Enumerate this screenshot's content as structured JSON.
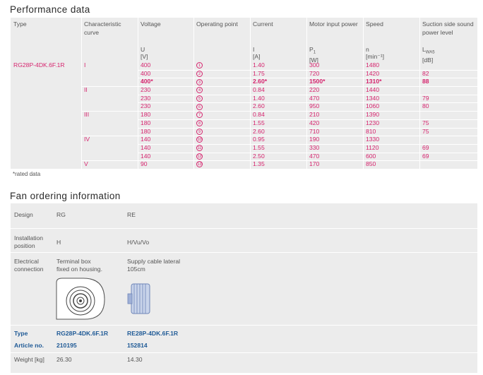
{
  "perf_title": "Performance data",
  "perf_headers": {
    "type": "Type",
    "curve": "Characteristic curve",
    "voltage": "Voltage",
    "operating_point": "Operating point",
    "current": "Current",
    "motor_power": "Motor input power",
    "speed": "Speed",
    "sound": "Suction side sound power level"
  },
  "perf_units": {
    "voltage_sym": "U",
    "voltage_unit": "[V]",
    "current_sym": "I",
    "current_unit": "[A]",
    "power_sym": "P",
    "power_sub": "1",
    "power_unit": "[W]",
    "speed_sym": "n",
    "speed_unit": "[min⁻¹]",
    "sound_sym": "L",
    "sound_sub": "WA5",
    "sound_unit": "[dB]"
  },
  "perf_type": "RG28P-4DK.6F.1R",
  "perf_rows": [
    {
      "curve": "I",
      "voltage": "400",
      "op": "1",
      "current": "1.40",
      "power": "300",
      "speed": "1480",
      "sound": "",
      "bold": false
    },
    {
      "curve": "",
      "voltage": "400",
      "op": "2",
      "current": "1.75",
      "power": "720",
      "speed": "1420",
      "sound": "82",
      "bold": false
    },
    {
      "curve": "",
      "voltage": "400*",
      "op": "3",
      "current": "2.60*",
      "power": "1500*",
      "speed": "1310*",
      "sound": "88",
      "bold": true
    },
    {
      "curve": "II",
      "voltage": "230",
      "op": "4",
      "current": "0.84",
      "power": "220",
      "speed": "1440",
      "sound": "",
      "bold": false
    },
    {
      "curve": "",
      "voltage": "230",
      "op": "5",
      "current": "1.40",
      "power": "470",
      "speed": "1340",
      "sound": "79",
      "bold": false
    },
    {
      "curve": "",
      "voltage": "230",
      "op": "6",
      "current": "2.60",
      "power": "950",
      "speed": "1060",
      "sound": "80",
      "bold": false
    },
    {
      "curve": "III",
      "voltage": "180",
      "op": "7",
      "current": "0.84",
      "power": "210",
      "speed": "1390",
      "sound": "",
      "bold": false
    },
    {
      "curve": "",
      "voltage": "180",
      "op": "8",
      "current": "1.55",
      "power": "420",
      "speed": "1230",
      "sound": "75",
      "bold": false
    },
    {
      "curve": "",
      "voltage": "180",
      "op": "9",
      "current": "2.60",
      "power": "710",
      "speed": "810",
      "sound": "75",
      "bold": false
    },
    {
      "curve": "IV",
      "voltage": "140",
      "op": "10",
      "current": "0.95",
      "power": "190",
      "speed": "1330",
      "sound": "",
      "bold": false
    },
    {
      "curve": "",
      "voltage": "140",
      "op": "11",
      "current": "1.55",
      "power": "330",
      "speed": "1120",
      "sound": "69",
      "bold": false
    },
    {
      "curve": "",
      "voltage": "140",
      "op": "12",
      "current": "2.50",
      "power": "470",
      "speed": "600",
      "sound": "69",
      "bold": false
    },
    {
      "curve": "V",
      "voltage": "90",
      "op": "13",
      "current": "1.35",
      "power": "170",
      "speed": "850",
      "sound": "",
      "bold": false
    }
  ],
  "rated_note": "*rated data",
  "fan_title": "Fan ordering information",
  "fan": {
    "design_label": "Design",
    "design_rg": "RG",
    "design_re": "RE",
    "install_label_1": "Installation",
    "install_label_2": "position",
    "install_rg": "H",
    "install_re": "H/Vu/Vo",
    "elec_label_1": "Electrical",
    "elec_label_2": "connection",
    "elec_rg_1": "Terminal box",
    "elec_rg_2": "fixed on housing.",
    "elec_re_1": "Supply cable lateral",
    "elec_re_2": "105cm",
    "type_label": "Type",
    "type_rg": "RG28P-4DK.6F.1R",
    "type_re": "RE28P-4DK.6F.1R",
    "article_label": "Article no.",
    "article_rg": "210195",
    "article_re": "152814",
    "weight_label": "Weight [kg]",
    "weight_rg": "26.30",
    "weight_re": "14.30"
  },
  "colors": {
    "accent": "#d6246e",
    "blue": "#1f5a96",
    "panel": "#ececec"
  }
}
